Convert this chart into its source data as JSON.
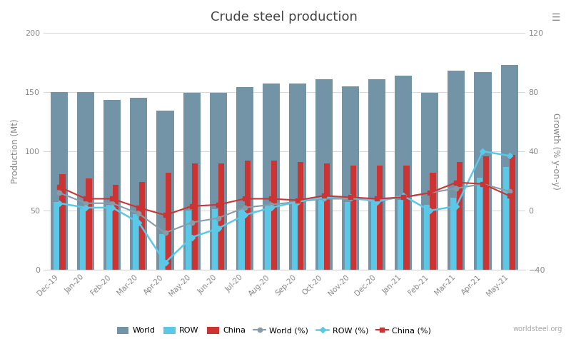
{
  "title": "Crude steel production",
  "ylabel_left": "Production (Mt)",
  "ylabel_right": "Growth (% y-on-y)",
  "categories": [
    "Dec-19",
    "Jan-20",
    "Feb-20",
    "Mar-20",
    "Apr-20",
    "May-20",
    "Jun-20",
    "Jul-20",
    "Aug-20",
    "Sep-20",
    "Oct-20",
    "Nov-20",
    "Dec-20",
    "Jan-21",
    "Feb-21",
    "Mar-21",
    "Apr-21",
    "May-21"
  ],
  "world_mt": [
    150,
    150,
    143,
    145,
    134,
    149,
    149,
    154,
    157,
    157,
    161,
    155,
    161,
    164,
    149,
    168,
    167,
    173
  ],
  "row_mt": [
    57,
    52,
    55,
    47,
    30,
    50,
    51,
    51,
    54,
    56,
    59,
    57,
    57,
    59,
    55,
    61,
    78,
    87
  ],
  "china_mt": [
    81,
    77,
    72,
    74,
    82,
    90,
    90,
    92,
    92,
    91,
    90,
    88,
    88,
    88,
    82,
    91,
    96,
    97
  ],
  "world_pct": [
    12,
    5,
    5,
    -2,
    -15,
    -8,
    -5,
    2,
    4,
    6,
    8,
    8,
    7,
    9,
    12,
    15,
    18,
    13
  ],
  "row_pct": [
    5,
    2,
    2,
    -8,
    -35,
    -18,
    -12,
    -3,
    2,
    6,
    9,
    9,
    6,
    10,
    0,
    3,
    40,
    37
  ],
  "china_pct": [
    16,
    8,
    8,
    2,
    -3,
    3,
    4,
    8,
    8,
    7,
    10,
    9,
    8,
    9,
    12,
    19,
    18,
    10
  ],
  "color_world": "#7393a7",
  "color_row": "#5bc8e8",
  "color_china": "#cc3333",
  "color_world_pct": "#8a9ba8",
  "color_row_pct": "#5bc8e8",
  "color_china_pct": "#cc3333",
  "background": "#ffffff",
  "grid_color": "#d8d8d8",
  "ylim_left": [
    0,
    200
  ],
  "ylim_right": [
    -40,
    120
  ],
  "yticks_left": [
    0,
    50,
    100,
    150,
    200
  ],
  "yticks_right": [
    -40,
    0,
    40,
    80,
    120
  ],
  "watermark": "worldsteel.org"
}
